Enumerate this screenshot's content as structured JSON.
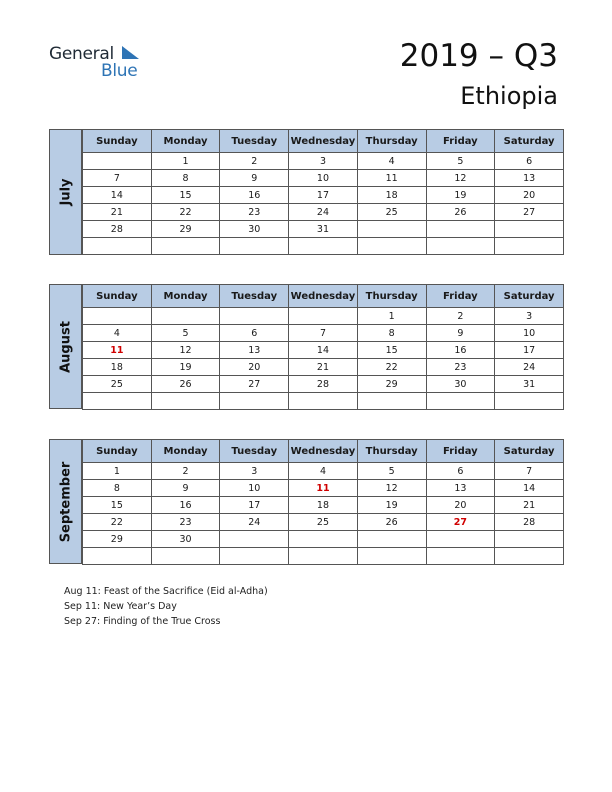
{
  "logo": {
    "word1": "General",
    "word2": "Blue",
    "flag_color": "#2e74b5"
  },
  "title": {
    "year_quarter": "2019 – Q3",
    "country": "Ethiopia"
  },
  "weekdays": [
    "Sunday",
    "Monday",
    "Tuesday",
    "Wednesday",
    "Thursday",
    "Friday",
    "Saturday"
  ],
  "months": [
    {
      "name": "July",
      "weeks": [
        [
          "",
          "1",
          "2",
          "3",
          "4",
          "5",
          "6"
        ],
        [
          "7",
          "8",
          "9",
          "10",
          "11",
          "12",
          "13"
        ],
        [
          "14",
          "15",
          "16",
          "17",
          "18",
          "19",
          "20"
        ],
        [
          "21",
          "22",
          "23",
          "24",
          "25",
          "26",
          "27"
        ],
        [
          "28",
          "29",
          "30",
          "31",
          "",
          "",
          ""
        ],
        [
          "",
          "",
          "",
          "",
          "",
          "",
          ""
        ]
      ],
      "holidays": []
    },
    {
      "name": "August",
      "weeks": [
        [
          "",
          "",
          "",
          "",
          "1",
          "2",
          "3"
        ],
        [
          "4",
          "5",
          "6",
          "7",
          "8",
          "9",
          "10"
        ],
        [
          "11",
          "12",
          "13",
          "14",
          "15",
          "16",
          "17"
        ],
        [
          "18",
          "19",
          "20",
          "21",
          "22",
          "23",
          "24"
        ],
        [
          "25",
          "26",
          "27",
          "28",
          "29",
          "30",
          "31"
        ],
        [
          "",
          "",
          "",
          "",
          "",
          "",
          ""
        ]
      ],
      "holidays": [
        "11"
      ]
    },
    {
      "name": "September",
      "weeks": [
        [
          "1",
          "2",
          "3",
          "4",
          "5",
          "6",
          "7"
        ],
        [
          "8",
          "9",
          "10",
          "11",
          "12",
          "13",
          "14"
        ],
        [
          "15",
          "16",
          "17",
          "18",
          "19",
          "20",
          "21"
        ],
        [
          "22",
          "23",
          "24",
          "25",
          "26",
          "27",
          "28"
        ],
        [
          "29",
          "30",
          "",
          "",
          "",
          "",
          ""
        ],
        [
          "",
          "",
          "",
          "",
          "",
          "",
          ""
        ]
      ],
      "holidays": [
        "11",
        "27"
      ]
    }
  ],
  "notes": [
    "Aug 11: Feast of the Sacrifice (Eid al-Adha)",
    "Sep 11: New Year’s Day",
    "Sep 27: Finding of the True Cross"
  ],
  "colors": {
    "header_bg": "#b8cce4",
    "holiday": "#d00000",
    "border": "#555555"
  }
}
